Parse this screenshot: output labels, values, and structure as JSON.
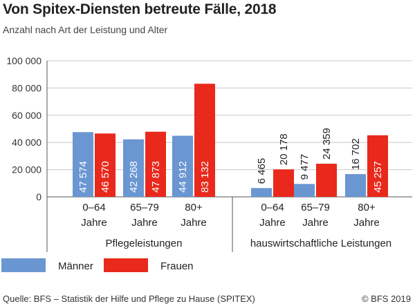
{
  "title": "Von Spitex-Diensten betreute Fälle, 2018",
  "subtitle": "Anzahl nach Art der Leistung und Alter",
  "footer": {
    "source": "Quelle: BFS – Statistik der Hilfe und Pflege zu Hause (SPITEX)",
    "copyright": "© BFS 2019"
  },
  "colors": {
    "maenner": "#6a96d2",
    "frauen": "#e8291c",
    "grid": "#c8c8c8",
    "axis": "#555555"
  },
  "chart_data": {
    "type": "bar",
    "ylim": [
      0,
      100000
    ],
    "yticks": [
      0,
      20000,
      40000,
      60000,
      80000,
      100000
    ],
    "ytick_labels": [
      "0",
      "20 000",
      "40 000",
      "60 000",
      "80 000",
      "100 000"
    ],
    "grid": true,
    "legend_position": "bottom-left",
    "groups": [
      {
        "label": "Pflegeleistungen",
        "categories": [
          "0–64\nJahre",
          "65–79\nJahre",
          "80+\nJahre"
        ]
      },
      {
        "label": "hauswirtschaftliche Leistungen",
        "categories": [
          "0–64\nJahre",
          "65–79\nJahre",
          "80+\nJahre"
        ]
      }
    ],
    "series": [
      {
        "name": "Männer",
        "values": [
          47574,
          42268,
          44912,
          6465,
          9477,
          16702
        ],
        "labels": [
          "47 574",
          "42 268",
          "44 912",
          "6 465",
          "9 477",
          "16 702"
        ]
      },
      {
        "name": "Frauen",
        "values": [
          46570,
          47873,
          83132,
          20178,
          24359,
          45257
        ],
        "labels": [
          "46 570",
          "47 873",
          "83 132",
          "20 178",
          "24 359",
          "45 257"
        ]
      }
    ]
  }
}
